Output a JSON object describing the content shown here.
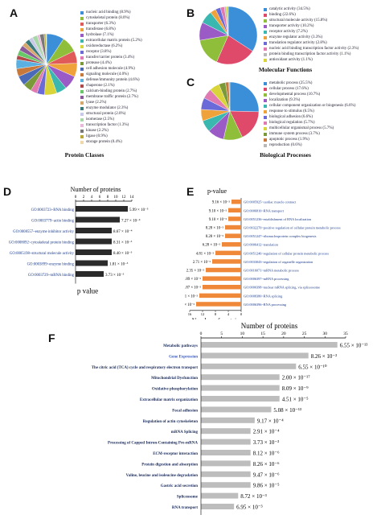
{
  "chart_data": [
    {
      "id": "A",
      "type": "pie",
      "caption": "Protein Classes",
      "labels": [
        "nucleic acid binding (8.9%)",
        "cytoskeletal protein (8.0%)",
        "transporter (6.3%)",
        "transferase (6.8%)",
        "hydrolase (7.1%)",
        "extracellular matrix protein (5.2%)",
        "oxidoreductase (6.2%)",
        "receptor (3.8%)",
        "transfer/carrier protein (3.4%)",
        "protease (4.4%)",
        "cell adhesion molecule (4.9%)",
        "signaling molecule (4.0%)",
        "defense/immunity protein (4.6%)",
        "chaperone (2.1%)",
        "calcium-binding protein (2.7%)",
        "membrane traffic protein (2.7%)",
        "lyase (2.2%)",
        "enzyme modulator (2.3%)",
        "structural protein (2.0%)",
        "isomerase (2.5%)",
        "transcription factor (1.3%)",
        "kinase (2.2%)",
        "ligase (0.9%)",
        "storage protein (0.4%)"
      ],
      "values": [
        8.9,
        8.0,
        6.3,
        6.8,
        7.1,
        5.2,
        6.2,
        3.8,
        3.4,
        4.4,
        4.9,
        4.0,
        4.6,
        2.1,
        2.7,
        2.7,
        2.2,
        2.3,
        2.0,
        2.5,
        1.3,
        2.2,
        0.9,
        0.4
      ],
      "colors": [
        "#3a8fd8",
        "#8fbf3a",
        "#e05a5a",
        "#f0a23a",
        "#9b5bc6",
        "#3ab8b0",
        "#d8d43a",
        "#6a6ad8",
        "#e07ab0",
        "#7a9a3a",
        "#4a6ab8",
        "#c8783a",
        "#5ab0e0",
        "#b04a4a",
        "#68c868",
        "#8a5a9a",
        "#d8a86a",
        "#3a7a7a",
        "#c8c8e8",
        "#a8d8a8",
        "#e8b8d8",
        "#787878",
        "#b8a838",
        "#f0d8a8"
      ]
    },
    {
      "id": "B",
      "type": "pie",
      "caption": "Molecular Functions",
      "labels": [
        "catalytic activity (34.5%)",
        "binding (22.6%)",
        "structural molecule activity (15.8%)",
        "transporter activity (10.2%)",
        "receptor activity (7.2%)",
        "enzyme regulator activity (3.3%)",
        "translation regulator activity (2.8%)",
        "nucleic acid binding transcription factor activity (2.3%)",
        "protein binding transcription factor activity (1.1%)",
        "antioxidant activity (1.1%)"
      ],
      "values": [
        34.5,
        22.6,
        15.8,
        10.2,
        7.2,
        3.3,
        2.8,
        2.3,
        1.1,
        1.1
      ],
      "colors": [
        "#3a8fd8",
        "#e04a6a",
        "#8fbf3a",
        "#9b5bc6",
        "#3ab8b0",
        "#f0a23a",
        "#6a6ad8",
        "#e07ab0",
        "#b8b8b8",
        "#d8d43a"
      ]
    },
    {
      "id": "C",
      "type": "pie",
      "caption": "Biological Processes",
      "labels": [
        "metabolic process (25.5%)",
        "cellular process (17.6%)",
        "developmental process (10.7%)",
        "localization (9.3%)",
        "cellular component organization or biogenesis (6.6%)",
        "response to stimulus (6.5%)",
        "biological adhesion (6.6%)",
        "biological regulation (5.7%)",
        "multicellular organismal process (5.7%)",
        "immune system process (3.7%)",
        "apoptotic process (1.9%)",
        "reproduction (0.6%)"
      ],
      "values": [
        25.5,
        17.6,
        10.7,
        9.3,
        6.6,
        6.5,
        6.6,
        5.7,
        5.7,
        3.7,
        1.9,
        0.6
      ],
      "colors": [
        "#3a8fd8",
        "#e04a6a",
        "#8fbf3a",
        "#9b5bc6",
        "#3ab8b0",
        "#f0a23a",
        "#6a6ad8",
        "#e07ab0",
        "#d8d43a",
        "#7a9a3a",
        "#c8783a",
        "#b8b8b8"
      ]
    },
    {
      "id": "D",
      "type": "bar",
      "title": "Number of proteins",
      "xlabel": "p value",
      "xlim": [
        0,
        14
      ],
      "ticks": [
        "0",
        "2",
        "4",
        "6",
        "8",
        "10",
        "12",
        "14"
      ],
      "categories": [
        "GO:0003723~RNA binding",
        "GO:0003779~actin binding",
        "GO:0008557~enzyme inhibitor activity",
        "GO:0008092~cytoskeletal protein binding",
        "GO:0005198~structural molecule activity",
        "GO:0003899~enzyme binding",
        "GO:0003729~mRNA binding"
      ],
      "values": [
        13,
        11,
        9,
        9,
        9,
        8,
        7
      ],
      "pvalues": [
        "5.99 × 10⁻⁵",
        "7.27 × 10⁻⁴",
        "8.67 × 10⁻⁴",
        "8.31 × 10⁻³",
        "8.40 × 10⁻³",
        "1.81 × 10⁻³",
        "3.73 × 10⁻³"
      ],
      "color": "#2b2b2b"
    },
    {
      "id": "E",
      "type": "bar",
      "title": "p-value",
      "xlabel": "Number of proteins",
      "ticks": [
        "16",
        "12",
        "8",
        "4",
        "0"
      ],
      "xlim": [
        0,
        16
      ],
      "categories": [
        "GO:0005925~cardiac muscle contract",
        "GO:0006810~RNA transport",
        "GO:0051236~establishment of RNA localization",
        "GO:0032270~positive regulation of cellular protein metabolic process",
        "GO:0051247~ribonucleoprotein complex biogenesis",
        "GO:0006412~translation",
        "GO:0051246~regulation of cellular protein metabolic process",
        "GO:0033043~regulation of organelle organization",
        "GO:0016071~mRNA metabolic process",
        "GO:0006397~mRNA processing",
        "GO:0000398~nuclear mRNA splicing, via spliceosome",
        "GO:0008380~RNA splicing",
        "GO:0006396~RNA processing"
      ],
      "values": [
        3,
        4,
        4,
        5,
        5,
        6,
        8,
        9,
        11,
        12,
        12,
        13,
        14
      ],
      "pvalues": [
        "9.16 × 10⁻³",
        "9.10 × 10⁻³",
        "9.10 × 10⁻³",
        "8.28 × 10⁻³",
        "8.28 × 10⁻³",
        "6.28 × 10⁻³",
        "4.81 × 10⁻³",
        "2.71 × 10⁻³",
        "2.35 × 10⁻³",
        "1.89 × 10⁻³",
        "3.87 × 10⁻³",
        "1.01 × 10⁻³",
        "1.01 × 10⁻³"
      ],
      "color": "#f0883a"
    },
    {
      "id": "F",
      "type": "bar",
      "title": "Number of proteins",
      "xlabel": "p-value",
      "xlim": [
        0,
        35
      ],
      "ticks": [
        "0",
        "5",
        "10",
        "15",
        "20",
        "25",
        "30",
        "35"
      ],
      "categories": [
        "Metabolic pathways",
        "Gene Expression",
        "The citric acid (TCA) cycle and respiratory electron transport",
        "Mitochondrial Dysfunction",
        "Oxidative phosphorylation",
        "Extracellular matrix organization",
        "Focal adhesion",
        "Regulation of actin cytoskeleton",
        "mRNA Splicing",
        "Processing of Capped Intron-Containing Pre-mRNA",
        "ECM-receptor interaction",
        "Protein digestion and absorption",
        "Valine, leucine and isoleucine degradation",
        "Gastric acid secretion",
        "Spliceosome",
        "RNA transport"
      ],
      "values": [
        33,
        26,
        23,
        19,
        19,
        19,
        17,
        13,
        12,
        12,
        12,
        12,
        12,
        12,
        9,
        8
      ],
      "pvalues": [
        "6.55 × 10⁻¹³",
        "8.26 × 10⁻²",
        "6.55 × 10⁻¹⁰",
        "2.00 × 10⁻¹⁷",
        "8.09 × 10⁻⁹",
        "4.51 × 10⁻⁵",
        "5.08 × 10⁻¹³",
        "9.17 × 10⁻⁴",
        "2.91 × 10⁻⁴",
        "3.73 × 10⁻³",
        "8.12 × 10⁻⁶",
        "8.26 × 10⁻⁶",
        "9.47 × 10⁻⁶",
        "9.86 × 10⁻⁵",
        "8.72 × 10⁻³",
        "6.95 × 10⁻³"
      ],
      "color": "#bdbdbd",
      "highlight": {
        "index": 1,
        "color": "#3a5ab8"
      }
    }
  ]
}
